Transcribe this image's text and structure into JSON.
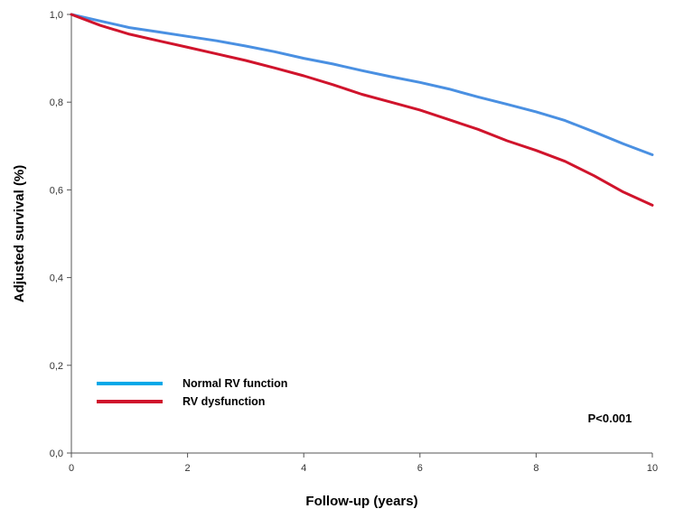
{
  "chart_data": {
    "type": "line",
    "xlabel": "Follow-up (years)",
    "ylabel": "Adjusted survival (%)",
    "xlim": [
      0,
      10
    ],
    "ylim": [
      0.0,
      1.0
    ],
    "x_ticks": [
      0,
      2,
      4,
      6,
      8,
      10
    ],
    "x_tick_labels": [
      "0",
      "2",
      "4",
      "6",
      "8",
      "10"
    ],
    "y_ticks": [
      0.0,
      0.2,
      0.4,
      0.6,
      0.8,
      1.0
    ],
    "y_tick_labels": [
      "0,0",
      "0,2",
      "0,4",
      "0,6",
      "0,8",
      "1,0"
    ],
    "grid": false,
    "legend_position": "bottom-left",
    "annotation": "P<0.001",
    "series": [
      {
        "name": "Normal RV function",
        "color": "#4a90e2",
        "legend_color": "#00a8e8",
        "x": [
          0,
          0.5,
          1,
          1.5,
          2,
          2.5,
          3,
          3.5,
          4,
          4.5,
          5,
          5.5,
          6,
          6.5,
          7,
          7.5,
          8,
          8.5,
          9,
          9.5,
          10
        ],
        "y": [
          1.0,
          0.985,
          0.97,
          0.96,
          0.95,
          0.94,
          0.928,
          0.915,
          0.9,
          0.887,
          0.872,
          0.858,
          0.845,
          0.83,
          0.812,
          0.795,
          0.778,
          0.758,
          0.732,
          0.705,
          0.68
        ]
      },
      {
        "name": "RV dysfunction",
        "color": "#d0142c",
        "legend_color": "#d0142c",
        "x": [
          0,
          0.5,
          1,
          1.5,
          2,
          2.5,
          3,
          3.5,
          4,
          4.5,
          5,
          5.5,
          6,
          6.5,
          7,
          7.5,
          8,
          8.5,
          9,
          9.5,
          10
        ],
        "y": [
          1.0,
          0.975,
          0.955,
          0.94,
          0.925,
          0.91,
          0.895,
          0.878,
          0.86,
          0.84,
          0.818,
          0.8,
          0.782,
          0.76,
          0.738,
          0.712,
          0.69,
          0.665,
          0.632,
          0.595,
          0.565
        ]
      }
    ]
  }
}
